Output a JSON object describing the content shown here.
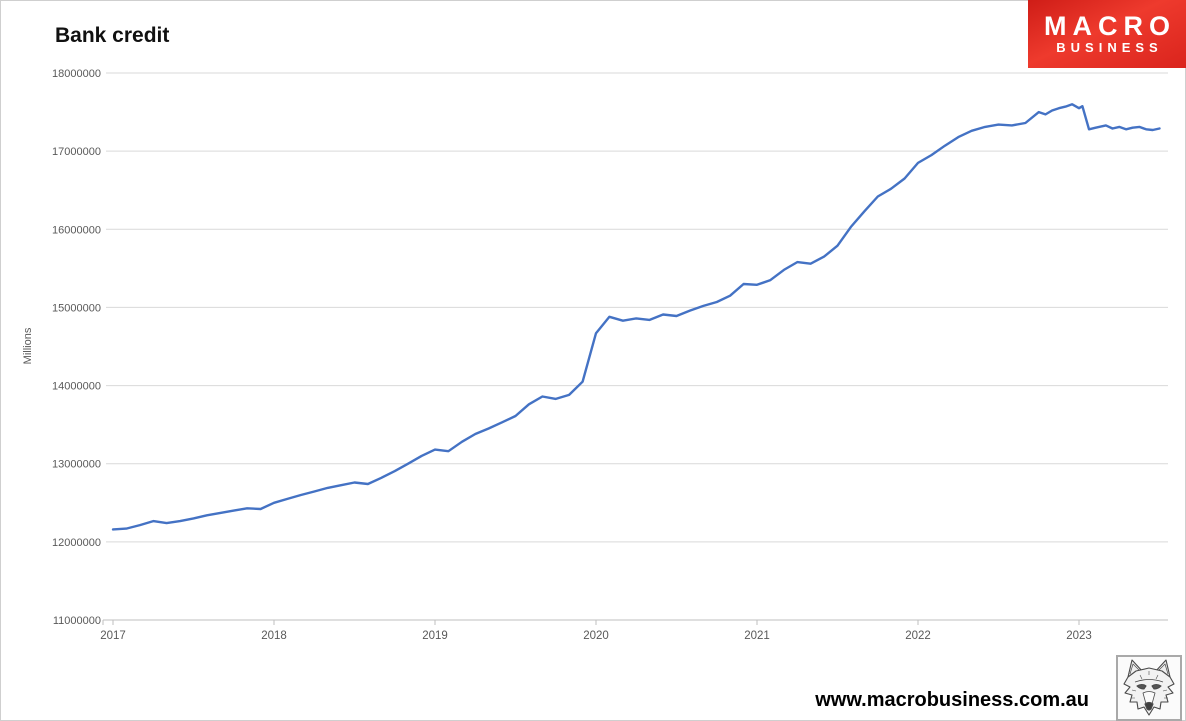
{
  "header": {
    "title": "Bank credit"
  },
  "logo": {
    "line1": "MACRO",
    "line2": "BUSINESS",
    "bg_color": "#e2261f",
    "text_color": "#ffffff"
  },
  "footer": {
    "watermark": "www.macrobusiness.com.au",
    "corner_image": "wolf-sketch"
  },
  "chart_data": {
    "type": "line",
    "title": "Bank credit",
    "xlabel": "",
    "ylabel": "Millions",
    "xlim": [
      2016.94,
      2023.56
    ],
    "ylim": [
      11000000,
      18000000
    ],
    "x_ticks": [
      2017,
      2018,
      2019,
      2020,
      2021,
      2022,
      2023
    ],
    "y_ticks": [
      11000000,
      12000000,
      13000000,
      14000000,
      15000000,
      16000000,
      17000000,
      18000000
    ],
    "grid": "horizontal",
    "legend": "none",
    "colors": {
      "line": "#4472c4",
      "grid": "#d9d9d9",
      "axis": "#bfbfbf",
      "tick_text": "#595959"
    },
    "series": [
      {
        "name": "Bank credit",
        "points": [
          [
            2017.0,
            12160000
          ],
          [
            2017.083,
            12170000
          ],
          [
            2017.167,
            12215000
          ],
          [
            2017.25,
            12265000
          ],
          [
            2017.333,
            12240000
          ],
          [
            2017.417,
            12265000
          ],
          [
            2017.5,
            12300000
          ],
          [
            2017.583,
            12340000
          ],
          [
            2017.667,
            12370000
          ],
          [
            2017.75,
            12400000
          ],
          [
            2017.833,
            12430000
          ],
          [
            2017.917,
            12420000
          ],
          [
            2018.0,
            12500000
          ],
          [
            2018.083,
            12550000
          ],
          [
            2018.167,
            12600000
          ],
          [
            2018.25,
            12645000
          ],
          [
            2018.333,
            12690000
          ],
          [
            2018.417,
            12725000
          ],
          [
            2018.5,
            12760000
          ],
          [
            2018.583,
            12740000
          ],
          [
            2018.667,
            12820000
          ],
          [
            2018.75,
            12905000
          ],
          [
            2018.833,
            13000000
          ],
          [
            2018.917,
            13100000
          ],
          [
            2019.0,
            13180000
          ],
          [
            2019.083,
            13160000
          ],
          [
            2019.167,
            13280000
          ],
          [
            2019.25,
            13380000
          ],
          [
            2019.333,
            13450000
          ],
          [
            2019.417,
            13530000
          ],
          [
            2019.5,
            13610000
          ],
          [
            2019.583,
            13760000
          ],
          [
            2019.667,
            13860000
          ],
          [
            2019.75,
            13830000
          ],
          [
            2019.833,
            13880000
          ],
          [
            2019.917,
            14050000
          ],
          [
            2020.0,
            14670000
          ],
          [
            2020.083,
            14880000
          ],
          [
            2020.167,
            14830000
          ],
          [
            2020.25,
            14860000
          ],
          [
            2020.333,
            14840000
          ],
          [
            2020.417,
            14910000
          ],
          [
            2020.5,
            14890000
          ],
          [
            2020.583,
            14960000
          ],
          [
            2020.667,
            15020000
          ],
          [
            2020.75,
            15070000
          ],
          [
            2020.833,
            15150000
          ],
          [
            2020.917,
            15300000
          ],
          [
            2021.0,
            15290000
          ],
          [
            2021.083,
            15350000
          ],
          [
            2021.167,
            15480000
          ],
          [
            2021.25,
            15580000
          ],
          [
            2021.333,
            15560000
          ],
          [
            2021.417,
            15650000
          ],
          [
            2021.5,
            15790000
          ],
          [
            2021.583,
            16030000
          ],
          [
            2021.667,
            16230000
          ],
          [
            2021.75,
            16420000
          ],
          [
            2021.833,
            16520000
          ],
          [
            2021.917,
            16650000
          ],
          [
            2022.0,
            16850000
          ],
          [
            2022.083,
            16950000
          ],
          [
            2022.167,
            17070000
          ],
          [
            2022.25,
            17180000
          ],
          [
            2022.333,
            17260000
          ],
          [
            2022.417,
            17310000
          ],
          [
            2022.5,
            17340000
          ],
          [
            2022.583,
            17330000
          ],
          [
            2022.667,
            17360000
          ],
          [
            2022.75,
            17500000
          ],
          [
            2022.792,
            17470000
          ],
          [
            2022.833,
            17520000
          ],
          [
            2022.875,
            17550000
          ],
          [
            2022.917,
            17570000
          ],
          [
            2022.958,
            17600000
          ],
          [
            2023.0,
            17550000
          ],
          [
            2023.021,
            17575000
          ],
          [
            2023.062,
            17280000
          ],
          [
            2023.104,
            17300000
          ],
          [
            2023.167,
            17330000
          ],
          [
            2023.208,
            17290000
          ],
          [
            2023.25,
            17310000
          ],
          [
            2023.292,
            17280000
          ],
          [
            2023.333,
            17300000
          ],
          [
            2023.375,
            17310000
          ],
          [
            2023.417,
            17280000
          ],
          [
            2023.458,
            17270000
          ],
          [
            2023.5,
            17290000
          ]
        ]
      }
    ]
  }
}
